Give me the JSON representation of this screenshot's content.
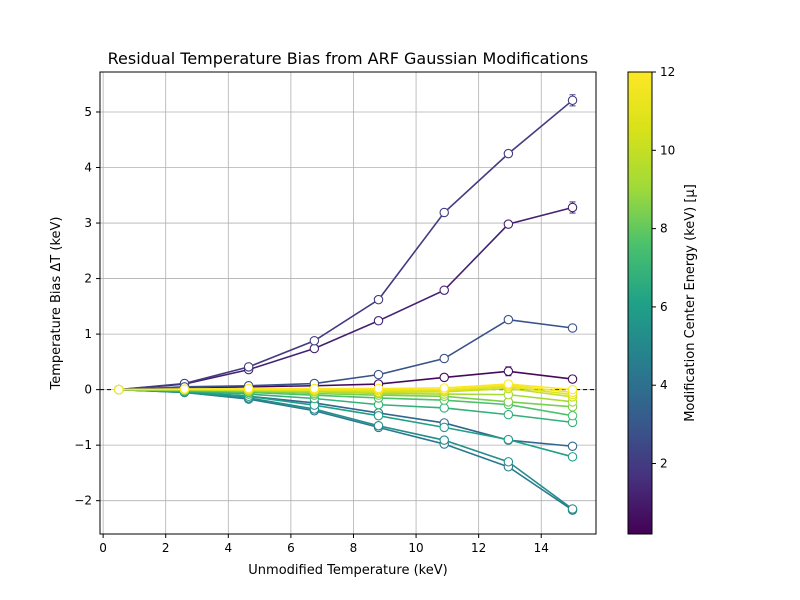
{
  "chart_data": {
    "type": "line",
    "title": "Residual Temperature Bias from ARF Gaussian Modifications",
    "xlabel": "Unmodified Temperature (keV)",
    "ylabel": "Temperature Bias ΔT (keV)",
    "xlim": [
      -0.1,
      15.75
    ],
    "ylim": [
      -2.6,
      5.72
    ],
    "xticks": [
      0,
      2,
      4,
      6,
      8,
      10,
      12,
      14
    ],
    "yticks": [
      -2,
      -1,
      0,
      1,
      2,
      3,
      4,
      5
    ],
    "grid": true,
    "reference_line": {
      "y": 0,
      "style": "dashed",
      "color": "#000000"
    },
    "x": [
      0.5,
      2.6,
      4.65,
      6.75,
      8.8,
      10.9,
      12.95,
      15.0
    ],
    "colorbar": {
      "label": "Modification Center Energy (keV) [μ]",
      "colormap": "viridis",
      "range": [
        0.2,
        12
      ],
      "ticks": [
        2,
        4,
        6,
        8,
        10,
        12
      ]
    },
    "series": [
      {
        "mu": 0.5,
        "values": [
          0,
          0.02,
          0.05,
          0.07,
          0.1,
          0.22,
          0.33,
          0.19
        ],
        "errors": [
          0,
          0,
          0,
          0,
          0,
          0.03,
          0.08,
          0.06
        ]
      },
      {
        "mu": 1.2,
        "values": [
          0,
          0.1,
          0.36,
          0.74,
          1.24,
          1.79,
          2.98,
          3.28
        ],
        "errors": [
          0,
          0,
          0,
          0,
          0,
          0.03,
          0.03,
          0.1
        ]
      },
      {
        "mu": 2.0,
        "values": [
          0,
          0.11,
          0.41,
          0.88,
          1.62,
          3.19,
          4.25,
          5.21
        ],
        "errors": [
          0,
          0,
          0,
          0,
          0,
          0.03,
          0.06,
          0.1
        ]
      },
      {
        "mu": 2.8,
        "values": [
          0,
          0.05,
          0.07,
          0.11,
          0.27,
          0.56,
          1.26,
          1.11
        ],
        "errors": [
          0,
          0,
          0,
          0,
          0,
          0,
          0.03,
          0.03
        ]
      },
      {
        "mu": 3.6,
        "values": [
          0,
          -0.04,
          -0.12,
          -0.24,
          -0.42,
          -0.6,
          -0.91,
          -1.02
        ],
        "errors": [
          0,
          0,
          0,
          0,
          0,
          0,
          0.02,
          0.02
        ]
      },
      {
        "mu": 4.4,
        "values": [
          0,
          -0.05,
          -0.17,
          -0.38,
          -0.68,
          -0.98,
          -1.39,
          -2.17
        ],
        "errors": [
          0,
          0,
          0,
          0,
          0,
          0,
          0.02,
          0.03
        ]
      },
      {
        "mu": 5.2,
        "values": [
          0,
          -0.05,
          -0.15,
          -0.35,
          -0.65,
          -0.91,
          -1.3,
          -2.15
        ],
        "errors": [
          0,
          0,
          0,
          0,
          0,
          0,
          0.02,
          0.03
        ]
      },
      {
        "mu": 6.0,
        "values": [
          0,
          -0.04,
          -0.12,
          -0.28,
          -0.47,
          -0.68,
          -0.9,
          -1.21
        ],
        "errors": [
          0,
          0,
          0,
          0,
          0,
          0,
          0.02,
          0.02
        ]
      },
      {
        "mu": 6.8,
        "values": [
          0,
          -0.03,
          -0.08,
          -0.16,
          -0.27,
          -0.33,
          -0.45,
          -0.59
        ],
        "errors": [
          0,
          0,
          0,
          0,
          0,
          0,
          0.01,
          0.01
        ]
      },
      {
        "mu": 7.6,
        "values": [
          0,
          -0.02,
          -0.05,
          -0.1,
          -0.15,
          -0.19,
          -0.27,
          -0.47
        ],
        "errors": [
          0,
          0,
          0,
          0,
          0,
          0,
          0.01,
          0.01
        ]
      },
      {
        "mu": 8.4,
        "values": [
          0,
          -0.01,
          -0.03,
          -0.07,
          -0.1,
          -0.12,
          -0.22,
          -0.31
        ],
        "errors": [
          0,
          0,
          0,
          0,
          0,
          0,
          0.01,
          0.01
        ]
      },
      {
        "mu": 9.2,
        "values": [
          0,
          0,
          -0.02,
          -0.04,
          -0.07,
          -0.08,
          -0.09,
          -0.22
        ],
        "errors": [
          0,
          0,
          0,
          0,
          0,
          0,
          0.01,
          0.01
        ]
      },
      {
        "mu": 10.0,
        "values": [
          0,
          0,
          -0.01,
          -0.02,
          -0.05,
          -0.04,
          0.02,
          -0.13
        ],
        "errors": [
          0,
          0,
          0,
          0,
          0,
          0,
          0.01,
          0.01
        ]
      },
      {
        "mu": 10.8,
        "values": [
          0,
          0,
          0,
          -0.01,
          -0.02,
          -0.02,
          0.05,
          -0.09
        ],
        "errors": [
          0,
          0,
          0,
          0,
          0,
          0,
          0.01,
          0.01
        ]
      },
      {
        "mu": 11.5,
        "values": [
          0,
          0.01,
          0.01,
          0,
          0,
          0,
          0.08,
          -0.05
        ],
        "errors": [
          0,
          0,
          0,
          0,
          0,
          0,
          0.01,
          0.01
        ]
      },
      {
        "mu": 12.0,
        "values": [
          0,
          0.01,
          0.02,
          0.02,
          0.02,
          0.03,
          0.1,
          0.0
        ],
        "errors": [
          0,
          0,
          0,
          0,
          0,
          0,
          0.01,
          0.01
        ]
      }
    ]
  }
}
